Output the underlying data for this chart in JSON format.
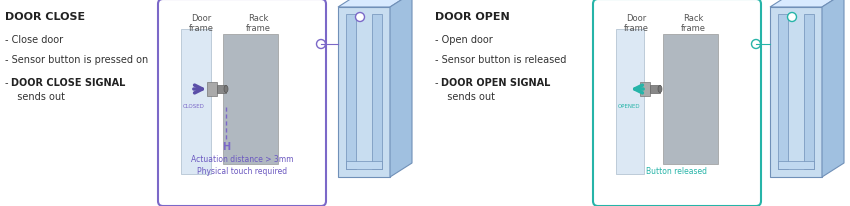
{
  "fig_width": 8.5,
  "fig_height": 2.07,
  "dpi": 100,
  "bg_color": "#ffffff",
  "left_title": "DOOR CLOSE",
  "left_bullet1": "- Close door",
  "left_bullet2": "- Sensor button is pressed on",
  "left_bullet3a": "- ",
  "left_bullet3b": "DOOR CLOSE SIGNAL",
  "left_bullet3c": "  sends out",
  "right_title": "DOOR OPEN",
  "right_bullet1": "- Open door",
  "right_bullet2": "- Sensor button is released",
  "right_bullet3a": "- ",
  "right_bullet3b": "DOOR OPEN SIGNAL",
  "right_bullet3c": "  sends out",
  "close_box_color": "#7b68c8",
  "open_box_color": "#26b4a8",
  "close_arrow_color": "#5b4fa8",
  "open_arrow_color": "#26b4a8",
  "close_label_color": "#6b58c0",
  "open_label_color": "#26b4a8",
  "door_frame_color": "#dce8f4",
  "rack_frame_color": "#b0b8c0",
  "actuation_text": "Actuation distance > 3mm",
  "physical_text": "Physical touch required",
  "button_released_text": "Button released",
  "closed_label": "CLOSED",
  "opened_label": "OPENED",
  "door_frame_label": "Door\nframe",
  "rack_frame_label": "Rack\nframe",
  "rack_front_color": "#c8ddf0",
  "rack_side_color": "#a0c0e0",
  "rack_top_color": "#d8eaff",
  "rack_inner_color": "#b0cce8",
  "rack_edge_color": "#7090b8"
}
